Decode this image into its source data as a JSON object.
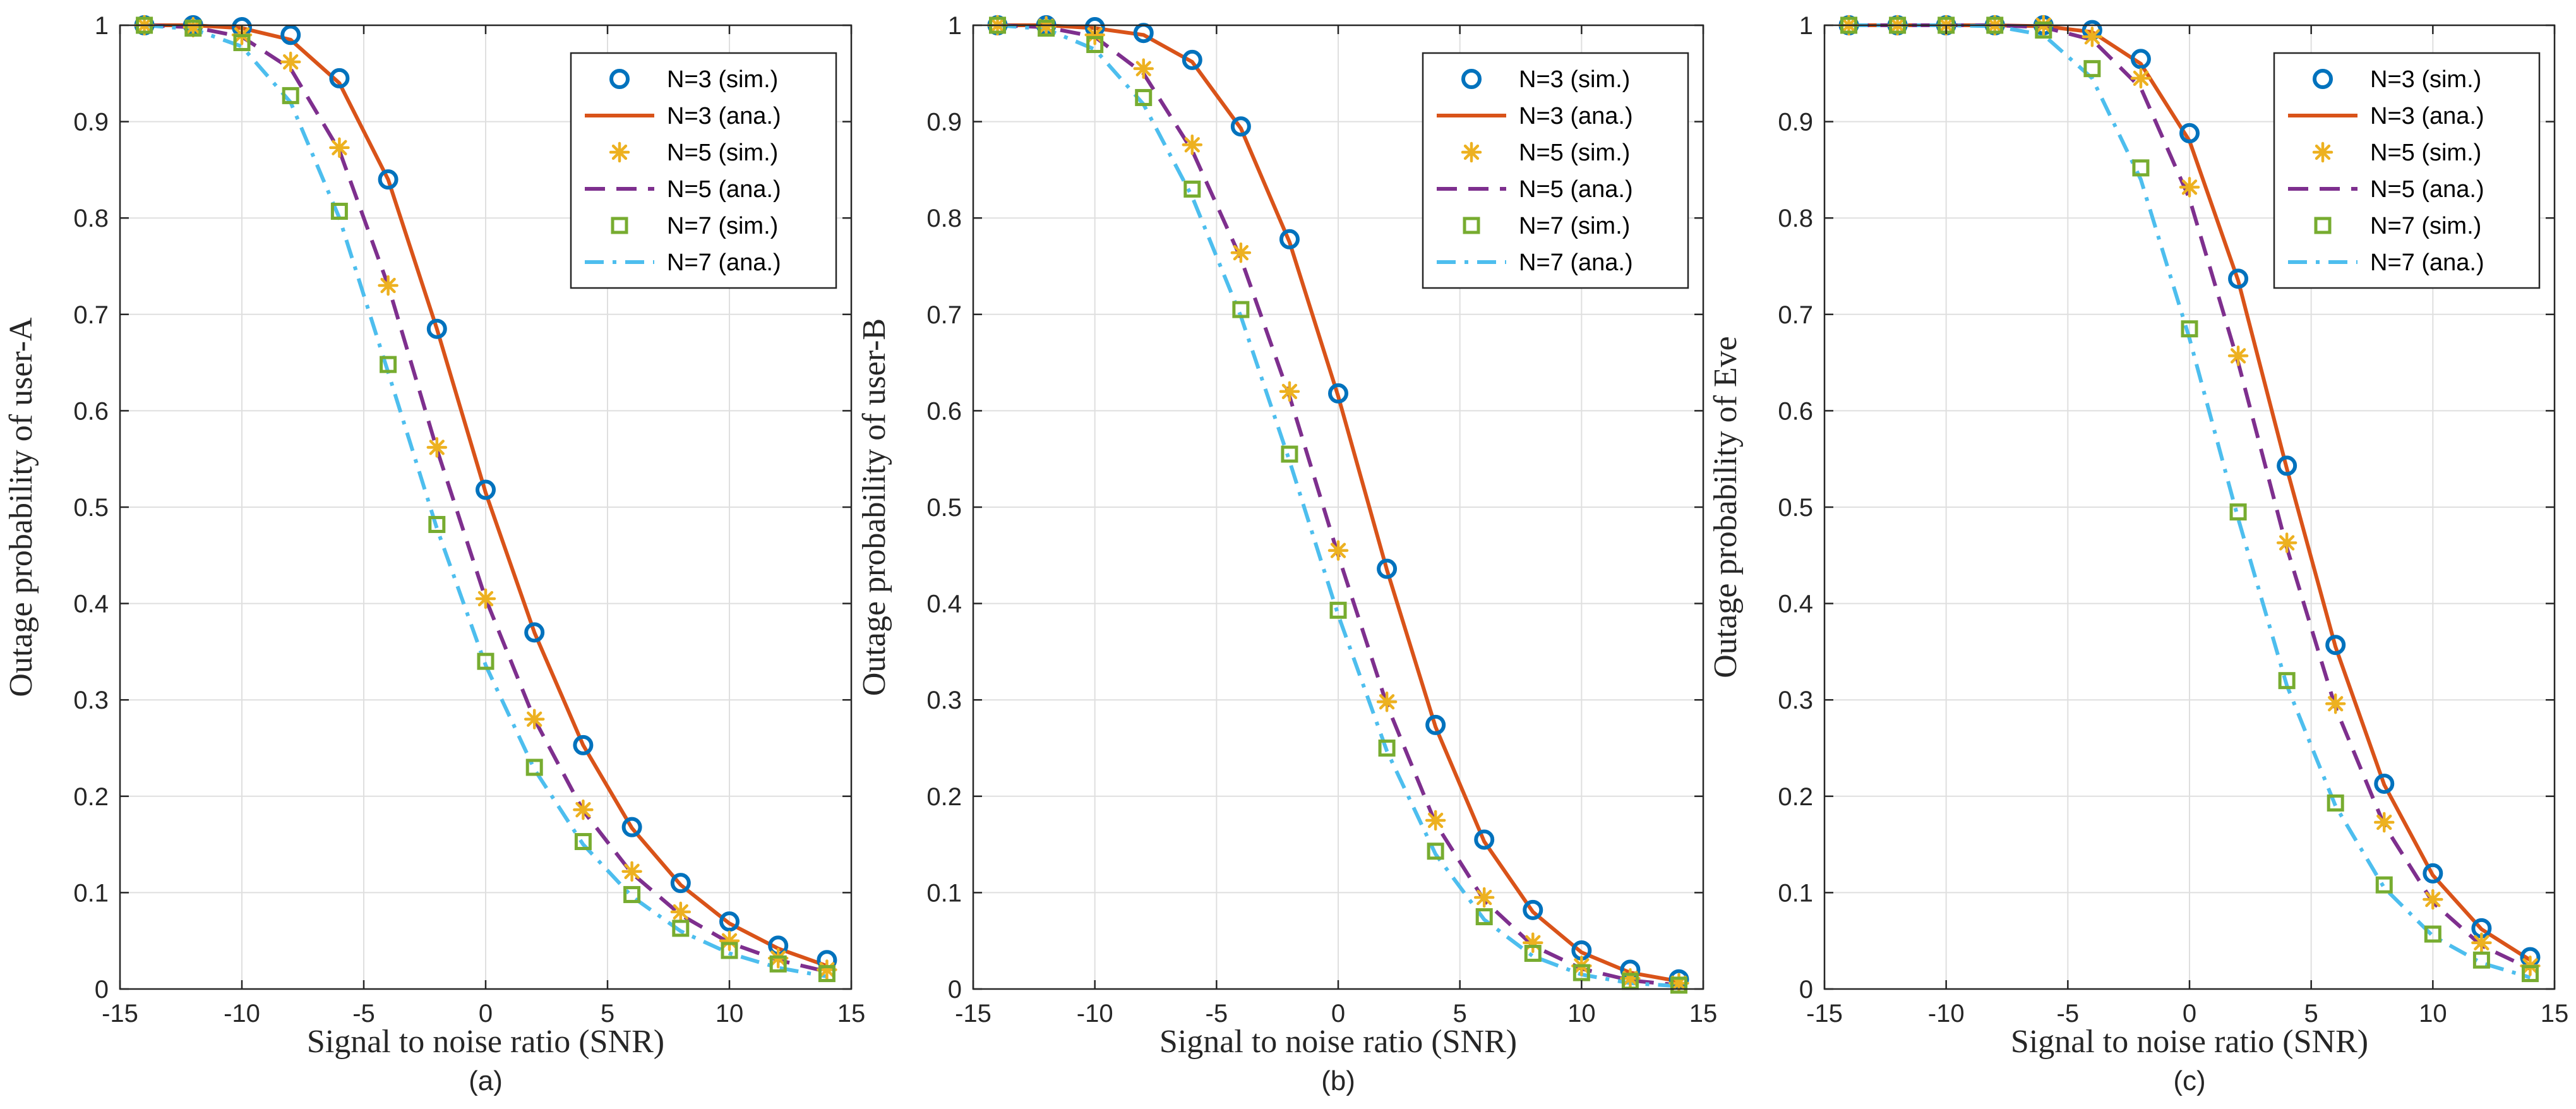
{
  "colors": {
    "n3": "#0072BD",
    "n3_line": "#D95319",
    "n5": "#EDB120",
    "n5_line": "#7E2F8E",
    "n7": "#77AC30",
    "n7_line": "#4DBEEE",
    "grid": "#dfdfdf",
    "axis": "#262626"
  },
  "chart_data": [
    {
      "type": "line",
      "panel_label": "(a)",
      "xlabel": "Signal to noise ratio (SNR)",
      "ylabel": "Outage probability of user-A",
      "xlim": [
        -15,
        15
      ],
      "ylim": [
        0,
        1
      ],
      "xticks": [
        "-15",
        "-10",
        "-5",
        "0",
        "5",
        "10",
        "15"
      ],
      "yticks": [
        "0",
        "0.1",
        "0.2",
        "0.3",
        "0.4",
        "0.5",
        "0.6",
        "0.7",
        "0.8",
        "0.9",
        "1"
      ],
      "grid": true,
      "legend_position": "top-right",
      "x": [
        -14,
        -12,
        -10,
        -8,
        -6,
        -4,
        -2,
        0,
        2,
        4,
        6,
        8,
        10,
        12,
        14
      ],
      "series": [
        {
          "name": "N=3 (sim.)",
          "style": "circle",
          "color_key": "n3",
          "values": [
            1.0,
            1.0,
            0.998,
            0.99,
            0.945,
            0.84,
            0.685,
            0.518,
            0.37,
            0.253,
            0.168,
            0.11,
            0.07,
            0.045,
            0.03
          ]
        },
        {
          "name": "N=3 (ana.)",
          "style": "solid",
          "color_key": "n3_line",
          "values": [
            1.0,
            1.0,
            0.997,
            0.985,
            0.94,
            0.84,
            0.685,
            0.515,
            0.37,
            0.253,
            0.167,
            0.108,
            0.068,
            0.042,
            0.024
          ]
        },
        {
          "name": "N=5 (sim.)",
          "style": "asterisk",
          "color_key": "n5",
          "values": [
            1.0,
            0.998,
            0.99,
            0.962,
            0.873,
            0.73,
            0.562,
            0.405,
            0.28,
            0.186,
            0.122,
            0.08,
            0.05,
            0.032,
            0.02
          ]
        },
        {
          "name": "N=5 (ana.)",
          "style": "dashed",
          "color_key": "n5_line",
          "values": [
            1.0,
            0.998,
            0.988,
            0.955,
            0.87,
            0.73,
            0.56,
            0.405,
            0.28,
            0.185,
            0.12,
            0.077,
            0.048,
            0.03,
            0.018
          ]
        },
        {
          "name": "N=7 (sim.)",
          "style": "square",
          "color_key": "n7",
          "values": [
            1.0,
            0.997,
            0.982,
            0.927,
            0.807,
            0.648,
            0.482,
            0.34,
            0.23,
            0.153,
            0.098,
            0.063,
            0.04,
            0.026,
            0.016
          ]
        },
        {
          "name": "N=7 (ana.)",
          "style": "dashdot",
          "color_key": "n7_line",
          "values": [
            1.0,
            0.996,
            0.978,
            0.92,
            0.8,
            0.64,
            0.478,
            0.336,
            0.228,
            0.15,
            0.096,
            0.06,
            0.037,
            0.022,
            0.013
          ]
        }
      ]
    },
    {
      "type": "line",
      "panel_label": "(b)",
      "xlabel": "Signal to noise ratio (SNR)",
      "ylabel": "Outage probability of user-B",
      "xlim": [
        -15,
        15
      ],
      "ylim": [
        0,
        1
      ],
      "xticks": [
        "-15",
        "-10",
        "-5",
        "0",
        "5",
        "10",
        "15"
      ],
      "yticks": [
        "0",
        "0.1",
        "0.2",
        "0.3",
        "0.4",
        "0.5",
        "0.6",
        "0.7",
        "0.8",
        "0.9",
        "1"
      ],
      "grid": true,
      "legend_position": "top-right",
      "x": [
        -14,
        -12,
        -10,
        -8,
        -6,
        -4,
        -2,
        0,
        2,
        4,
        6,
        8,
        10,
        12,
        14
      ],
      "series": [
        {
          "name": "N=3 (sim.)",
          "style": "circle",
          "color_key": "n3",
          "values": [
            1.0,
            1.0,
            0.998,
            0.992,
            0.964,
            0.895,
            0.778,
            0.618,
            0.436,
            0.274,
            0.155,
            0.082,
            0.04,
            0.02,
            0.01
          ]
        },
        {
          "name": "N=3 (ana.)",
          "style": "solid",
          "color_key": "n3_line",
          "values": [
            1.0,
            1.0,
            0.997,
            0.99,
            0.962,
            0.893,
            0.775,
            0.615,
            0.435,
            0.272,
            0.153,
            0.08,
            0.038,
            0.017,
            0.008
          ]
        },
        {
          "name": "N=5 (sim.)",
          "style": "asterisk",
          "color_key": "n5",
          "values": [
            1.0,
            0.999,
            0.99,
            0.955,
            0.876,
            0.764,
            0.62,
            0.455,
            0.298,
            0.175,
            0.095,
            0.048,
            0.024,
            0.011,
            0.006
          ]
        },
        {
          "name": "N=5 (ana.)",
          "style": "dashed",
          "color_key": "n5_line",
          "values": [
            1.0,
            0.998,
            0.988,
            0.95,
            0.87,
            0.758,
            0.615,
            0.45,
            0.295,
            0.172,
            0.092,
            0.045,
            0.021,
            0.009,
            0.004
          ]
        },
        {
          "name": "N=7 (sim.)",
          "style": "square",
          "color_key": "n7",
          "values": [
            1.0,
            0.997,
            0.98,
            0.925,
            0.83,
            0.705,
            0.555,
            0.393,
            0.25,
            0.143,
            0.075,
            0.037,
            0.017,
            0.008,
            0.004
          ]
        },
        {
          "name": "N=7 (ana.)",
          "style": "dashdot",
          "color_key": "n7_line",
          "values": [
            1.0,
            0.996,
            0.975,
            0.918,
            0.822,
            0.698,
            0.548,
            0.388,
            0.247,
            0.14,
            0.072,
            0.034,
            0.015,
            0.006,
            0.003
          ]
        }
      ]
    },
    {
      "type": "line",
      "panel_label": "(c)",
      "xlabel": "Signal to noise ratio (SNR)",
      "ylabel": "Outage probability of Eve",
      "xlim": [
        -15,
        15
      ],
      "ylim": [
        0,
        1
      ],
      "xticks": [
        "-15",
        "-10",
        "-5",
        "0",
        "5",
        "10",
        "15"
      ],
      "yticks": [
        "0",
        "0.1",
        "0.2",
        "0.3",
        "0.4",
        "0.5",
        "0.6",
        "0.7",
        "0.8",
        "0.9",
        "1"
      ],
      "grid": true,
      "legend_position": "top-right",
      "x": [
        -14,
        -12,
        -10,
        -8,
        -6,
        -4,
        -2,
        0,
        2,
        4,
        6,
        8,
        10,
        12,
        14
      ],
      "series": [
        {
          "name": "N=3 (sim.)",
          "style": "circle",
          "color_key": "n3",
          "values": [
            1.0,
            1.0,
            1.0,
            1.0,
            1.0,
            0.995,
            0.965,
            0.888,
            0.737,
            0.543,
            0.357,
            0.213,
            0.12,
            0.063,
            0.033
          ]
        },
        {
          "name": "N=3 (ana.)",
          "style": "solid",
          "color_key": "n3_line",
          "values": [
            1.0,
            1.0,
            1.0,
            1.0,
            0.999,
            0.993,
            0.96,
            0.88,
            0.735,
            0.54,
            0.355,
            0.212,
            0.118,
            0.062,
            0.03
          ]
        },
        {
          "name": "N=5 (sim.)",
          "style": "asterisk",
          "color_key": "n5",
          "values": [
            1.0,
            1.0,
            1.0,
            1.0,
            1.0,
            0.988,
            0.945,
            0.832,
            0.657,
            0.463,
            0.296,
            0.173,
            0.093,
            0.048,
            0.024
          ]
        },
        {
          "name": "N=5 (ana.)",
          "style": "dashed",
          "color_key": "n5_line",
          "values": [
            1.0,
            1.0,
            1.0,
            1.0,
            0.998,
            0.985,
            0.935,
            0.82,
            0.65,
            0.458,
            0.292,
            0.17,
            0.09,
            0.045,
            0.021
          ]
        },
        {
          "name": "N=7 (sim.)",
          "style": "square",
          "color_key": "n7",
          "values": [
            1.0,
            1.0,
            1.0,
            1.0,
            0.995,
            0.955,
            0.852,
            0.685,
            0.495,
            0.32,
            0.193,
            0.108,
            0.057,
            0.03,
            0.016
          ]
        },
        {
          "name": "N=7 (ana.)",
          "style": "dashdot",
          "color_key": "n7_line",
          "values": [
            1.0,
            1.0,
            1.0,
            0.999,
            0.99,
            0.945,
            0.84,
            0.675,
            0.488,
            0.315,
            0.19,
            0.105,
            0.055,
            0.027,
            0.012
          ]
        }
      ]
    }
  ]
}
